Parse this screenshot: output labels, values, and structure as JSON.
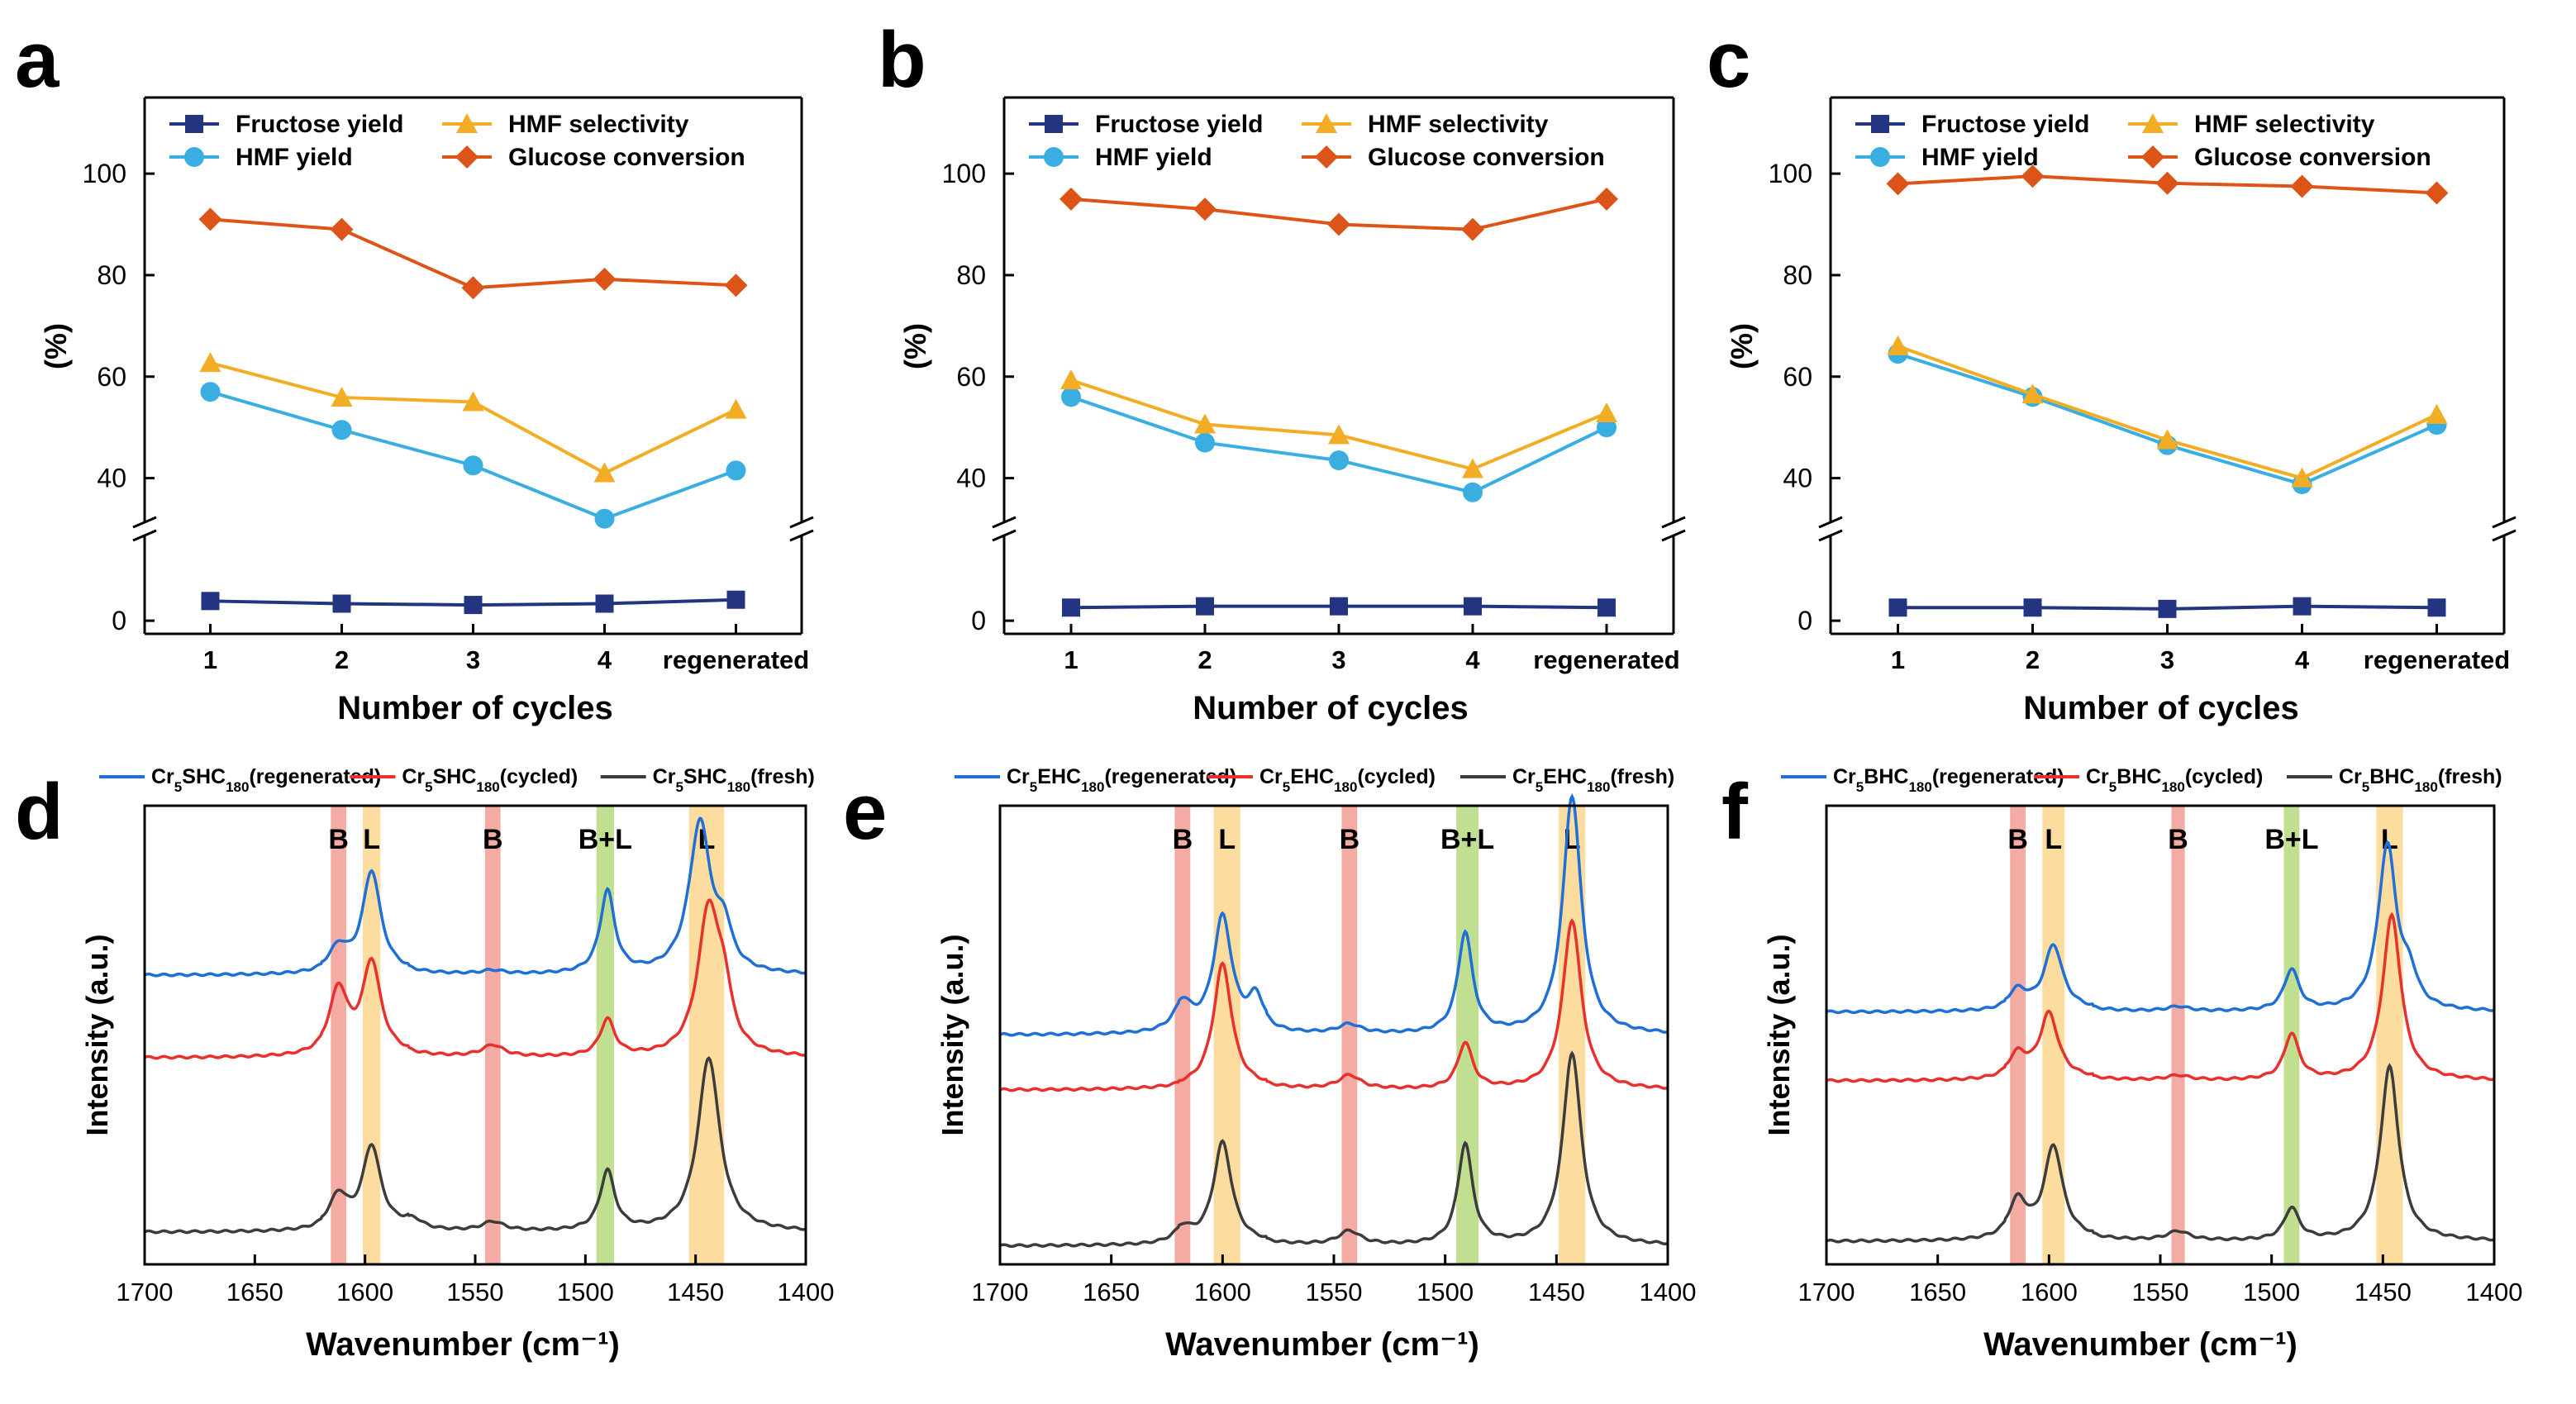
{
  "colors": {
    "fructose": "#233480",
    "hmf_yield": "#3aaee0",
    "hmf_sel": "#f2ad24",
    "glucose": "#dd5418",
    "regenerated": "#1f6fd6",
    "cycled": "#e8302c",
    "fresh": "#3c3c3c",
    "band_B": "#f19c93",
    "band_L": "#fbd78e",
    "band_BL": "#b5d97d"
  },
  "chart_data": [
    {
      "panel": "a",
      "type": "line",
      "xlabel": "Number of cycles",
      "ylabel": "(%)",
      "categories": [
        "1",
        "2",
        "3",
        "4",
        "regenerated"
      ],
      "ylim_upper": [
        30,
        115
      ],
      "ylim_lower": [
        -1,
        7
      ],
      "yticks": [
        0,
        40,
        60,
        80,
        100
      ],
      "legend": [
        "Fructose yield",
        "HMF selectivity",
        "HMF yield",
        "Glucose conversion"
      ],
      "series": [
        {
          "key": "fructose",
          "name": "Fructose yield",
          "marker": "square",
          "values": [
            1.5,
            1.3,
            1.2,
            1.3,
            1.6
          ]
        },
        {
          "key": "hmf_yield",
          "name": "HMF yield",
          "marker": "circle",
          "values": [
            57,
            49.5,
            42.5,
            32,
            41.5
          ]
        },
        {
          "key": "hmf_sel",
          "name": "HMF selectivity",
          "marker": "triangle",
          "values": [
            62.7,
            55.9,
            55,
            41,
            53.5
          ]
        },
        {
          "key": "glucose",
          "name": "Glucose conversion",
          "marker": "diamond",
          "values": [
            91,
            89,
            77.5,
            79.2,
            78
          ]
        }
      ]
    },
    {
      "panel": "b",
      "type": "line",
      "xlabel": "Number of cycles",
      "ylabel": "(%)",
      "categories": [
        "1",
        "2",
        "3",
        "4",
        "regenerated"
      ],
      "ylim_upper": [
        30,
        115
      ],
      "ylim_lower": [
        -1,
        7
      ],
      "yticks": [
        0,
        40,
        60,
        80,
        100
      ],
      "legend": [
        "Fructose yield",
        "HMF selectivity",
        "HMF yield",
        "Glucose conversion"
      ],
      "series": [
        {
          "key": "fructose",
          "name": "Fructose yield",
          "marker": "square",
          "values": [
            1.0,
            1.1,
            1.1,
            1.1,
            1.0
          ]
        },
        {
          "key": "hmf_yield",
          "name": "HMF yield",
          "marker": "circle",
          "values": [
            56,
            47,
            43.5,
            37.2,
            50
          ]
        },
        {
          "key": "hmf_sel",
          "name": "HMF selectivity",
          "marker": "triangle",
          "values": [
            59.3,
            50.6,
            48.5,
            41.8,
            52.8
          ]
        },
        {
          "key": "glucose",
          "name": "Glucose conversion",
          "marker": "diamond",
          "values": [
            95,
            93,
            90,
            89,
            95
          ]
        }
      ]
    },
    {
      "panel": "c",
      "type": "line",
      "xlabel": "Number of cycles",
      "ylabel": "(%)",
      "categories": [
        "1",
        "2",
        "3",
        "4",
        "regenerated"
      ],
      "ylim_upper": [
        30,
        115
      ],
      "ylim_lower": [
        -1,
        7
      ],
      "yticks": [
        0,
        40,
        60,
        80,
        100
      ],
      "legend": [
        "Fructose yield",
        "HMF selectivity",
        "HMF yield",
        "Glucose conversion"
      ],
      "series": [
        {
          "key": "fructose",
          "name": "Fructose yield",
          "marker": "square",
          "values": [
            1.0,
            1.0,
            0.9,
            1.1,
            1.0
          ]
        },
        {
          "key": "hmf_yield",
          "name": "HMF yield",
          "marker": "circle",
          "values": [
            64.5,
            56,
            46.5,
            38.8,
            50.5
          ]
        },
        {
          "key": "hmf_sel",
          "name": "HMF selectivity",
          "marker": "triangle",
          "values": [
            66,
            56.5,
            47.5,
            40,
            52.5
          ]
        },
        {
          "key": "glucose",
          "name": "Glucose conversion",
          "marker": "diamond",
          "values": [
            98,
            99.5,
            98.1,
            97.5,
            96.2
          ]
        }
      ]
    },
    {
      "panel": "d",
      "type": "line",
      "xlabel": "Wavenumber (cm⁻¹)",
      "ylabel": "Intensity (a.u.)",
      "xlim": [
        1700,
        1400
      ],
      "xticks": [
        1700,
        1650,
        1600,
        1550,
        1500,
        1450,
        1400
      ],
      "legend": [
        {
          "key": "regenerated",
          "prefix": "Cr",
          "sub5": "5",
          "mid": "SHC",
          "sub180": "180",
          "suffix": "(regenerated)"
        },
        {
          "key": "cycled",
          "prefix": "Cr",
          "sub5": "5",
          "mid": "SHC",
          "sub180": "180",
          "suffix": "(cycled)"
        },
        {
          "key": "fresh",
          "prefix": "Cr",
          "sub5": "5",
          "mid": "SHC",
          "sub180": "180",
          "suffix": "(fresh)"
        }
      ],
      "bands": [
        {
          "type": "B",
          "label": "B",
          "center": 1612,
          "width": 7
        },
        {
          "type": "L",
          "label": "L",
          "center": 1597,
          "width": 8
        },
        {
          "type": "B",
          "label": "B",
          "center": 1542,
          "width": 7
        },
        {
          "type": "BL",
          "label": "B+L",
          "center": 1491,
          "width": 8
        },
        {
          "type": "L",
          "label": "L",
          "center": 1445,
          "width": 16
        }
      ],
      "series": [
        {
          "key": "regenerated",
          "baseline": 0.63,
          "peaks": [
            [
              1612,
              0.05,
              5
            ],
            [
              1597,
              0.22,
              5
            ],
            [
              1542,
              0.008,
              6
            ],
            [
              1490,
              0.18,
              4
            ],
            [
              1448,
              0.33,
              6
            ],
            [
              1437,
              0.08,
              4
            ]
          ]
        },
        {
          "key": "cycled",
          "baseline": 0.45,
          "peaks": [
            [
              1612,
              0.14,
              5
            ],
            [
              1597,
              0.2,
              5
            ],
            [
              1542,
              0.025,
              6
            ],
            [
              1490,
              0.08,
              4
            ],
            [
              1444,
              0.32,
              6
            ],
            [
              1437,
              0.1,
              4
            ]
          ]
        },
        {
          "key": "fresh",
          "baseline": 0.07,
          "peaks": [
            [
              1612,
              0.07,
              5
            ],
            [
              1597,
              0.18,
              5
            ],
            [
              1578,
              0.02,
              5
            ],
            [
              1542,
              0.02,
              6
            ],
            [
              1490,
              0.13,
              4
            ],
            [
              1444,
              0.38,
              6
            ]
          ]
        }
      ]
    },
    {
      "panel": "e",
      "type": "line",
      "xlabel": "Wavenumber (cm⁻¹)",
      "ylabel": "Intensity (a.u.)",
      "xlim": [
        1700,
        1400
      ],
      "xticks": [
        1700,
        1650,
        1600,
        1550,
        1500,
        1450,
        1400
      ],
      "legend": [
        {
          "key": "regenerated",
          "prefix": "Cr",
          "sub5": "5",
          "mid": "EHC",
          "sub180": "180",
          "suffix": "(regenerated)"
        },
        {
          "key": "cycled",
          "prefix": "Cr",
          "sub5": "5",
          "mid": "EHC",
          "sub180": "180",
          "suffix": "(cycled)"
        },
        {
          "key": "fresh",
          "prefix": "Cr",
          "sub5": "5",
          "mid": "EHC",
          "sub180": "180",
          "suffix": "(fresh)"
        }
      ],
      "bands": [
        {
          "type": "B",
          "label": "B",
          "center": 1618,
          "width": 7
        },
        {
          "type": "L",
          "label": "L",
          "center": 1598,
          "width": 12
        },
        {
          "type": "B",
          "label": "B",
          "center": 1543,
          "width": 7
        },
        {
          "type": "BL",
          "label": "B+L",
          "center": 1490,
          "width": 10
        },
        {
          "type": "L",
          "label": "L",
          "center": 1443,
          "width": 12
        }
      ],
      "series": [
        {
          "key": "regenerated",
          "baseline": 0.5,
          "peaks": [
            [
              1618,
              0.06,
              5
            ],
            [
              1600,
              0.25,
              5
            ],
            [
              1585,
              0.07,
              4
            ],
            [
              1543,
              0.02,
              6
            ],
            [
              1491,
              0.22,
              4
            ],
            [
              1443,
              0.52,
              5
            ]
          ]
        },
        {
          "key": "cycled",
          "baseline": 0.38,
          "peaks": [
            [
              1600,
              0.27,
              5
            ],
            [
              1543,
              0.03,
              6
            ],
            [
              1491,
              0.1,
              4
            ],
            [
              1443,
              0.37,
              5
            ]
          ]
        },
        {
          "key": "fresh",
          "baseline": 0.04,
          "peaks": [
            [
              1618,
              0.03,
              5
            ],
            [
              1600,
              0.22,
              5
            ],
            [
              1543,
              0.03,
              6
            ],
            [
              1491,
              0.22,
              4
            ],
            [
              1443,
              0.42,
              5
            ]
          ]
        }
      ]
    },
    {
      "panel": "f",
      "type": "line",
      "xlabel": "Wavenumber (cm⁻¹)",
      "ylabel": "Intensity (a.u.)",
      "xlim": [
        1700,
        1400
      ],
      "xticks": [
        1700,
        1650,
        1600,
        1550,
        1500,
        1450,
        1400
      ],
      "legend": [
        {
          "key": "regenerated",
          "prefix": "Cr",
          "sub5": "5",
          "mid": "BHC",
          "sub180": "180",
          "suffix": "(regenerated)"
        },
        {
          "key": "cycled",
          "prefix": "Cr",
          "sub5": "5",
          "mid": "BHC",
          "sub180": "180",
          "suffix": "(cycled)"
        },
        {
          "key": "fresh",
          "prefix": "Cr",
          "sub5": "5",
          "mid": "BHC",
          "sub180": "180",
          "suffix": "(fresh)"
        }
      ],
      "bands": [
        {
          "type": "B",
          "label": "B",
          "center": 1614,
          "width": 7
        },
        {
          "type": "L",
          "label": "L",
          "center": 1598,
          "width": 10
        },
        {
          "type": "B",
          "label": "B",
          "center": 1542,
          "width": 6
        },
        {
          "type": "BL",
          "label": "B+L",
          "center": 1491,
          "width": 7
        },
        {
          "type": "L",
          "label": "L",
          "center": 1447,
          "width": 12
        }
      ],
      "series": [
        {
          "key": "regenerated",
          "baseline": 0.55,
          "peaks": [
            [
              1614,
              0.04,
              5
            ],
            [
              1598,
              0.14,
              5
            ],
            [
              1542,
              0.01,
              6
            ],
            [
              1491,
              0.09,
              4
            ],
            [
              1448,
              0.36,
              5
            ],
            [
              1438,
              0.06,
              4
            ]
          ]
        },
        {
          "key": "cycled",
          "baseline": 0.4,
          "peaks": [
            [
              1614,
              0.05,
              5
            ],
            [
              1600,
              0.14,
              5
            ],
            [
              1542,
              0.01,
              6
            ],
            [
              1491,
              0.1,
              4
            ],
            [
              1446,
              0.36,
              5
            ]
          ]
        },
        {
          "key": "fresh",
          "baseline": 0.05,
          "peaks": [
            [
              1614,
              0.08,
              5
            ],
            [
              1598,
              0.2,
              5
            ],
            [
              1542,
              0.02,
              6
            ],
            [
              1491,
              0.07,
              4
            ],
            [
              1447,
              0.38,
              5
            ]
          ]
        }
      ]
    }
  ]
}
